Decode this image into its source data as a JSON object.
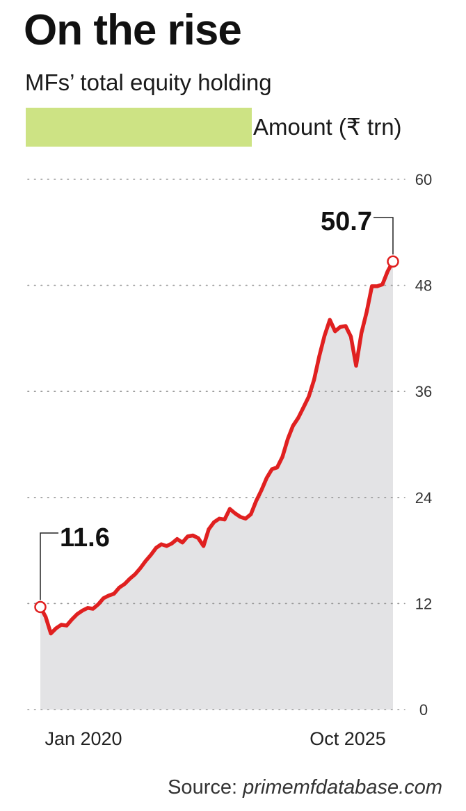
{
  "title": "On the rise",
  "subtitle": "MFs’ total equity holding",
  "legend": {
    "label": "Amount (₹ trn)",
    "color": "#cde384"
  },
  "source": {
    "prefix": "Source: ",
    "name": "primemfdatabase.com"
  },
  "colors": {
    "line": "#e02020",
    "area": "#e3e3e5",
    "grid": "#999999",
    "marker_fill": "#ffffff"
  },
  "chart_data": {
    "type": "area",
    "y_axis_side": "right",
    "grid": true,
    "ylim": [
      0,
      60
    ],
    "yticks": [
      0,
      12,
      24,
      36,
      48,
      60
    ],
    "x_tick_labels": [
      "Jan 2020",
      "Oct 2025"
    ],
    "series": [
      {
        "values": [
          11.6,
          10.5,
          8.6,
          9.2,
          9.6,
          9.5,
          10.2,
          10.8,
          11.2,
          11.5,
          11.4,
          11.9,
          12.6,
          12.9,
          13.1,
          13.8,
          14.2,
          14.8,
          15.3,
          16.0,
          16.8,
          17.5,
          18.3,
          18.7,
          18.5,
          18.8,
          19.3,
          18.9,
          19.6,
          19.7,
          19.4,
          18.5,
          20.4,
          21.2,
          21.6,
          21.5,
          22.7,
          22.2,
          21.8,
          21.6,
          22.1,
          23.6,
          24.8,
          26.2,
          27.2,
          27.4,
          28.6,
          30.6,
          32.1,
          33.0,
          34.2,
          35.4,
          37.3,
          40.0,
          42.3,
          44.1,
          42.8,
          43.3,
          43.4,
          42.2,
          38.9,
          42.6,
          45.0,
          47.9,
          47.9,
          48.1,
          49.6,
          50.7
        ]
      }
    ],
    "annotations": [
      {
        "label": "11.6",
        "value": 11.6,
        "at": "Jan 2020"
      },
      {
        "label": "50.7",
        "value": 50.7,
        "at": "Oct 2025"
      }
    ]
  }
}
